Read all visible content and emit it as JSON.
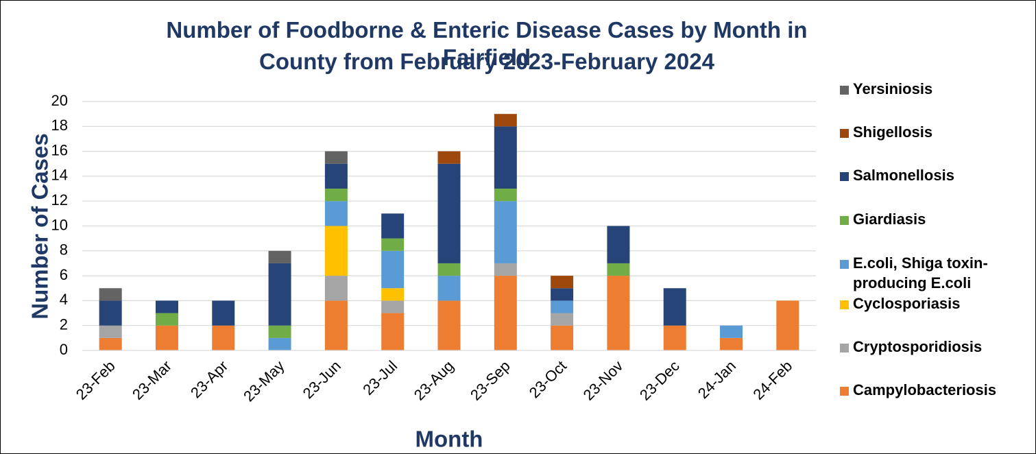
{
  "chart_data": {
    "type": "bar",
    "stacked": true,
    "title_line1": "Number of Foodborne & Enteric Disease Cases by Month in Fairfield",
    "title_line2": "County from February 2023-February 2024",
    "xlabel": "Month",
    "ylabel": "Number of Cases",
    "ylim": [
      0,
      20
    ],
    "yticks": [
      0,
      2,
      4,
      6,
      8,
      10,
      12,
      14,
      16,
      18,
      20
    ],
    "grid": true,
    "legend_position": "right",
    "categories": [
      "23-Feb",
      "23-Mar",
      "23-Apr",
      "23-May",
      "23-Jun",
      "23-Jul",
      "23-Aug",
      "23-Sep",
      "23-Oct",
      "23-Nov",
      "23-Dec",
      "24-Jan",
      "24-Feb"
    ],
    "series": [
      {
        "name": "Campylobacteriosis",
        "color": "#ED7D31",
        "values": [
          1,
          2,
          2,
          0,
          4,
          3,
          4,
          6,
          2,
          6,
          2,
          1,
          4
        ]
      },
      {
        "name": "Cryptosporidiosis",
        "color": "#A5A5A5",
        "values": [
          1,
          0,
          0,
          0,
          2,
          1,
          0,
          1,
          1,
          0,
          0,
          0,
          0
        ]
      },
      {
        "name": "Cyclosporiasis",
        "color": "#FFC000",
        "values": [
          0,
          0,
          0,
          0,
          4,
          1,
          0,
          0,
          0,
          0,
          0,
          0,
          0
        ]
      },
      {
        "name": "E.coli, Shiga toxin-producing E.coli",
        "legend_lines": [
          "E.coli, Shiga toxin-",
          "producing E.coli"
        ],
        "color": "#5B9BD5",
        "values": [
          0,
          0,
          0,
          1,
          2,
          3,
          2,
          5,
          1,
          0,
          0,
          1,
          0
        ]
      },
      {
        "name": "Giardiasis",
        "color": "#70AD47",
        "values": [
          0,
          1,
          0,
          1,
          1,
          1,
          1,
          1,
          0,
          1,
          0,
          0,
          0
        ]
      },
      {
        "name": "Salmonellosis",
        "color": "#264478",
        "values": [
          2,
          1,
          2,
          5,
          2,
          2,
          8,
          5,
          1,
          3,
          3,
          0,
          0
        ]
      },
      {
        "name": "Shigellosis",
        "color": "#9E480E",
        "values": [
          0,
          0,
          0,
          0,
          0,
          0,
          1,
          1,
          1,
          0,
          0,
          0,
          0
        ]
      },
      {
        "name": "Yersiniosis",
        "color": "#636363",
        "values": [
          1,
          0,
          0,
          1,
          1,
          0,
          0,
          0,
          0,
          0,
          0,
          0,
          0
        ]
      }
    ],
    "colors": {
      "title": "#1F3864",
      "grid": "#D9D9D9",
      "border": "#000000"
    }
  }
}
